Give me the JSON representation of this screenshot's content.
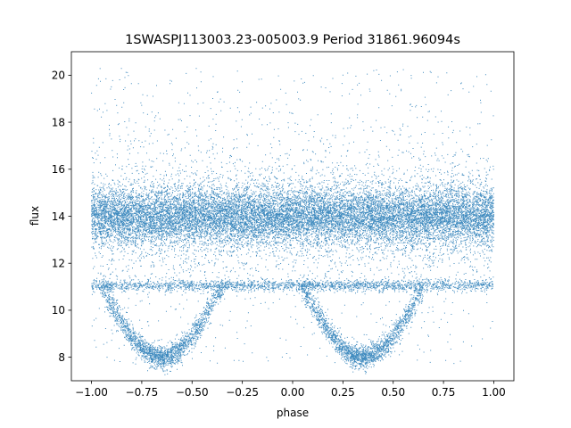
{
  "chart_data": {
    "type": "scatter",
    "title": "1SWASPJ113003.23-005003.9 Period 31861.96094s",
    "xlabel": "phase",
    "ylabel": "flux",
    "xlim": [
      -1.1,
      1.1
    ],
    "ylim": [
      7.0,
      21.0
    ],
    "xticks": [
      -1.0,
      -0.75,
      -0.5,
      -0.25,
      0.0,
      0.25,
      0.5,
      0.75,
      1.0
    ],
    "xtick_labels": [
      "−1.00",
      "−0.75",
      "−0.50",
      "−0.25",
      "0.00",
      "0.25",
      "0.50",
      "0.75",
      "1.00"
    ],
    "yticks": [
      8,
      10,
      12,
      14,
      16,
      18,
      20
    ],
    "ytick_labels": [
      "8",
      "10",
      "12",
      "14",
      "16",
      "18",
      "20"
    ],
    "grid": false,
    "marker_color": "#1f77b4",
    "series": [
      {
        "values_summary": "dense phase-folded light curve spanning phase -1.0 to 1.0",
        "components": [
          {
            "kind": "main_band",
            "x_range": [
              -1.0,
              1.0
            ],
            "center_flux": 14.0,
            "spread": 0.6
          },
          {
            "kind": "scatter_halo",
            "x_range": [
              -1.0,
              1.0
            ],
            "flux_range": [
              7.7,
              20.3
            ]
          },
          {
            "kind": "secondary_band",
            "x_range": [
              -1.0,
              1.0
            ],
            "center_flux": 11.05,
            "spread": 0.12
          },
          {
            "kind": "eclipse",
            "phase_center": -0.65,
            "half_width": 0.3,
            "min_flux": 8.0,
            "base_flux": 11.0
          },
          {
            "kind": "eclipse",
            "phase_center": 0.35,
            "half_width": 0.3,
            "min_flux": 8.0,
            "base_flux": 11.0
          }
        ]
      }
    ]
  }
}
